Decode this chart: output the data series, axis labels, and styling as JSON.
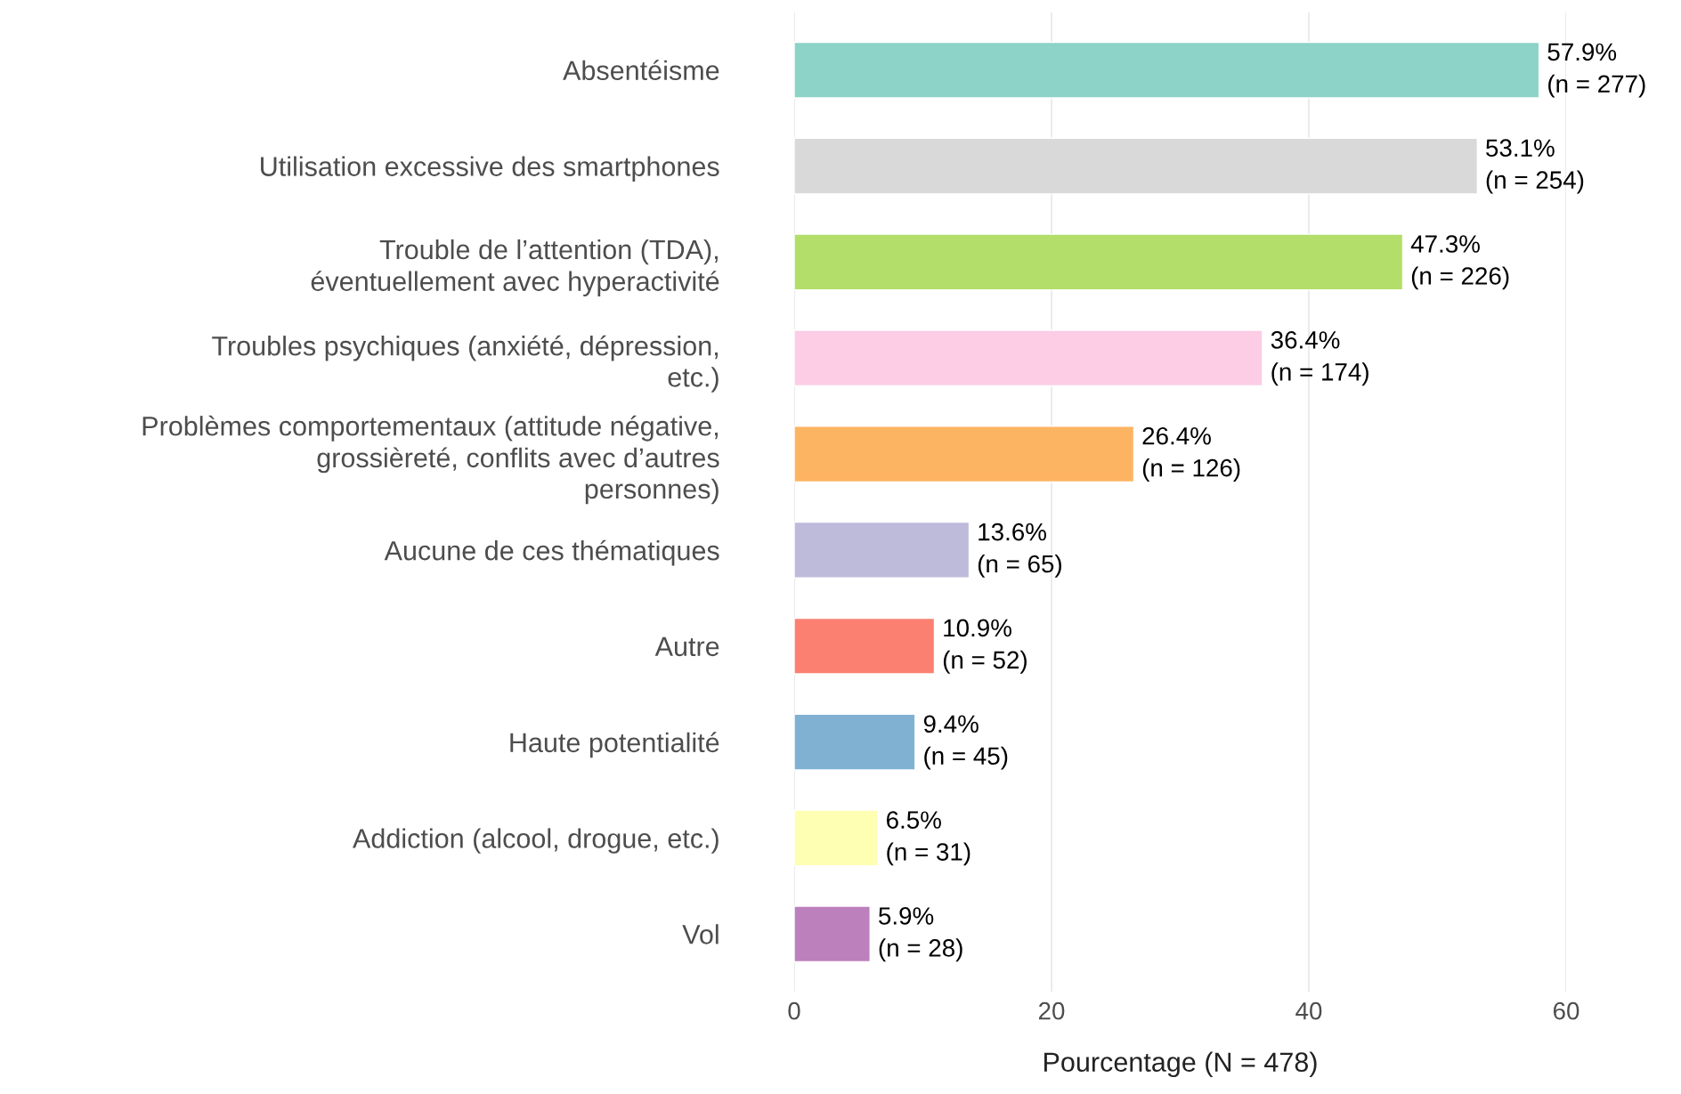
{
  "chart_data": {
    "type": "bar",
    "orientation": "horizontal",
    "xlabel": "Pourcentage (N = 478)",
    "categories": [
      "Absentéisme",
      "Utilisation excessive des smartphones",
      "Trouble de l’attention (TDA),\néventuellement avec hyperactivité",
      "Troubles psychiques (anxiété, dépression,\netc.)",
      "Problèmes comportementaux (attitude négative,\ngrossièreté, conflits avec d’autres\npersonnes)",
      "Aucune de ces thématiques",
      "Autre",
      "Haute potentialité",
      "Addiction (alcool, drogue, etc.)",
      "Vol"
    ],
    "values": [
      57.9,
      53.1,
      47.3,
      36.4,
      26.4,
      13.6,
      10.9,
      9.4,
      6.5,
      5.9
    ],
    "value_labels": [
      "57.9%\n(n = 277)",
      "53.1%\n(n = 254)",
      "47.3%\n(n = 226)",
      "36.4%\n(n = 174)",
      "26.4%\n(n = 126)",
      "13.6%\n(n = 65)",
      "10.9%\n(n = 52)",
      "9.4%\n(n = 45)",
      "6.5%\n(n = 31)",
      "5.9%\n(n = 28)"
    ],
    "colors": [
      "#8dd3c7",
      "#d9d9d9",
      "#b3de69",
      "#fccde5",
      "#fdb462",
      "#bebada",
      "#fb8072",
      "#80b1d3",
      "#ffffb3",
      "#bc80bd"
    ],
    "xlim": [
      0,
      60
    ],
    "xticks": [
      0,
      20,
      40,
      60
    ],
    "grid": "x"
  }
}
